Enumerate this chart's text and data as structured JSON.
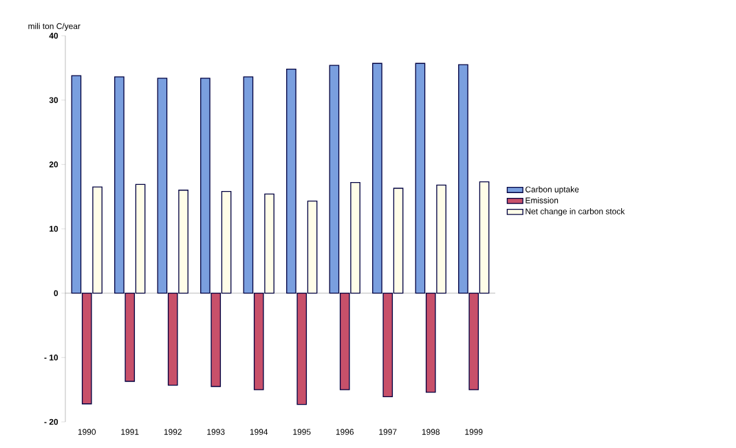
{
  "chart_data": {
    "type": "bar",
    "ylabel": "mili ton C/year",
    "categories": [
      "1990",
      "1991",
      "1992",
      "1993",
      "1994",
      "1995",
      "1996",
      "1997",
      "1998",
      "1999"
    ],
    "series": [
      {
        "name": "Carbon uptake",
        "color": "#7a9fdf",
        "values": [
          33.8,
          33.6,
          33.4,
          33.4,
          33.6,
          34.8,
          35.4,
          35.7,
          35.7,
          35.5
        ]
      },
      {
        "name": "Emission",
        "color": "#c8506a",
        "values": [
          -17.2,
          -13.7,
          -14.3,
          -14.5,
          -15.0,
          -17.3,
          -15.0,
          -16.1,
          -15.4,
          -15.0
        ]
      },
      {
        "name": "Net change in carbon stock",
        "color": "#fffde8",
        "values": [
          16.5,
          16.9,
          16.0,
          15.8,
          15.4,
          14.3,
          17.2,
          16.3,
          16.8,
          17.3
        ]
      }
    ],
    "ylim": [
      -20,
      40
    ],
    "yticks": [
      {
        "value": -20,
        "label": "- 20"
      },
      {
        "value": -10,
        "label": "- 10"
      },
      0,
      10,
      20,
      30,
      40
    ],
    "legend": "right"
  }
}
